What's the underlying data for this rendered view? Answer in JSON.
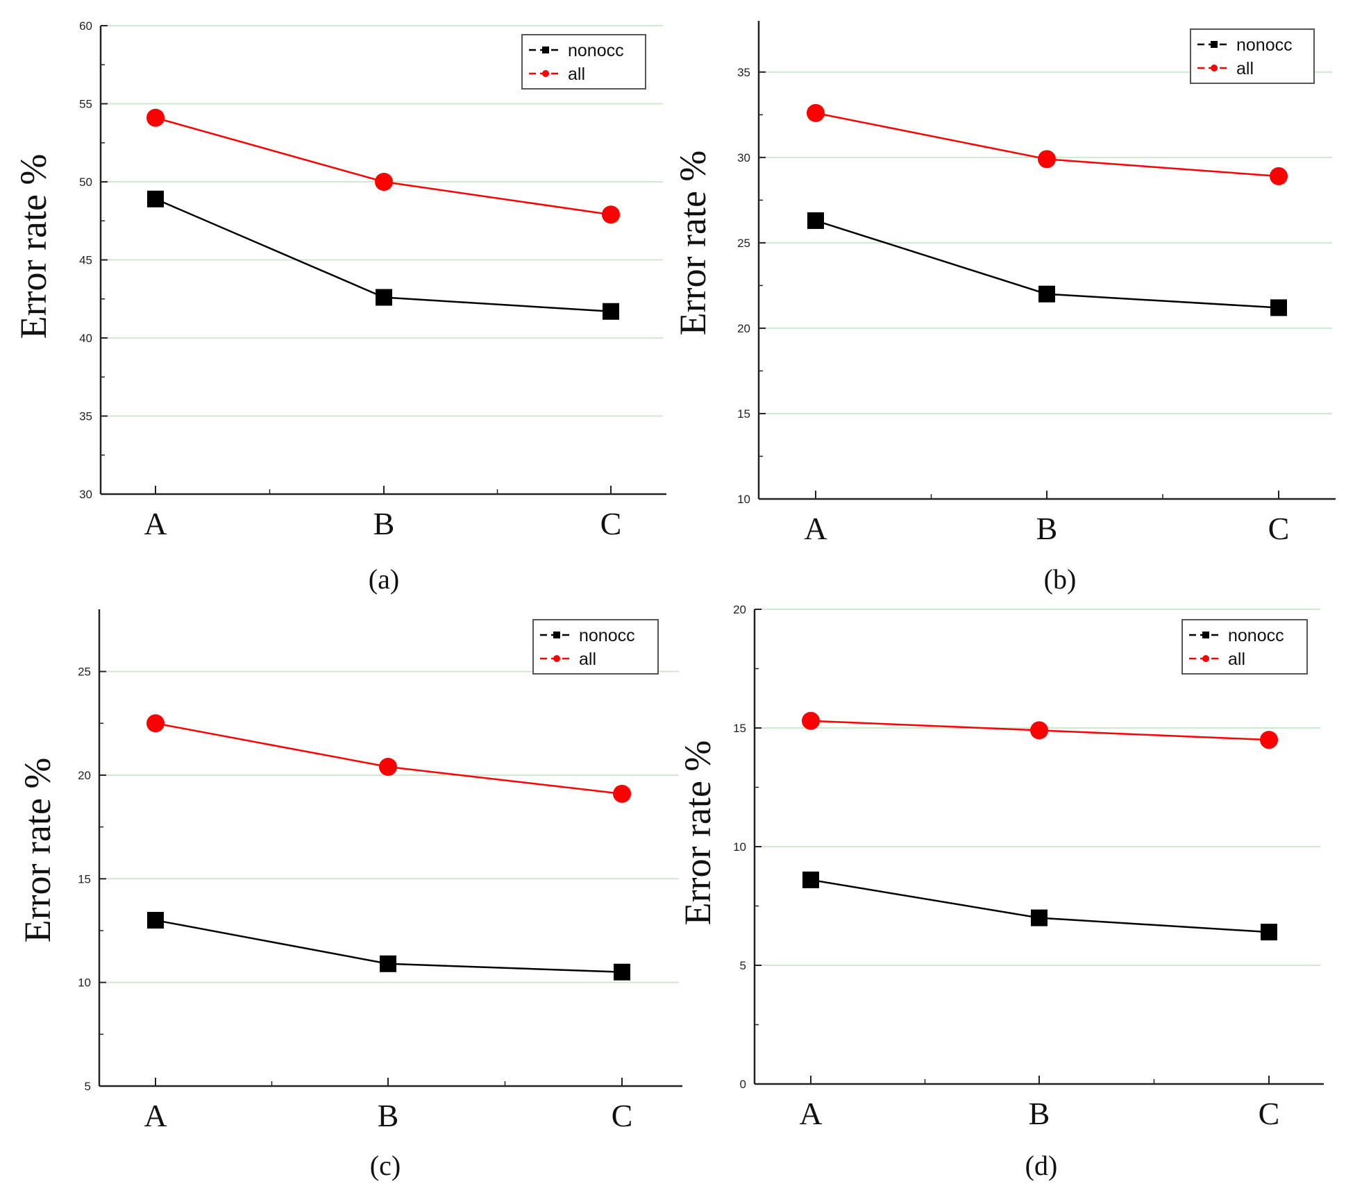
{
  "figure": {
    "colors": {
      "nonocc": "#000000",
      "all": "#ff0000",
      "grid": "#cfe9cf",
      "axis": "#222222"
    }
  },
  "chart_data": [
    {
      "type": "line",
      "caption": "(a)",
      "categories": [
        "A",
        "B",
        "C"
      ],
      "ylabel": "Error rate %",
      "ylim": [
        30,
        60
      ],
      "yticks": [
        "30",
        "35",
        "40",
        "45",
        "50",
        "55",
        "60"
      ],
      "series": [
        {
          "name": "nonocc",
          "marker": "square",
          "values": [
            48.9,
            42.6,
            41.7
          ]
        },
        {
          "name": "all",
          "marker": "circle",
          "values": [
            54.1,
            50.0,
            47.9
          ]
        }
      ]
    },
    {
      "type": "line",
      "caption": "(b)",
      "categories": [
        "A",
        "B",
        "C"
      ],
      "ylabel": "Error rate %",
      "ylim": [
        10,
        38
      ],
      "yticks": [
        "10",
        "15",
        "20",
        "25",
        "30",
        "35"
      ],
      "series": [
        {
          "name": "nonocc",
          "marker": "square",
          "values": [
            26.3,
            22.0,
            21.2
          ]
        },
        {
          "name": "all",
          "marker": "circle",
          "values": [
            32.6,
            29.9,
            28.9
          ]
        }
      ]
    },
    {
      "type": "line",
      "caption": "(c)",
      "categories": [
        "A",
        "B",
        "C"
      ],
      "ylabel": "Error rate %",
      "ylim": [
        5,
        28
      ],
      "yticks": [
        "5",
        "10",
        "15",
        "20",
        "25"
      ],
      "series": [
        {
          "name": "nonocc",
          "marker": "square",
          "values": [
            13.0,
            10.9,
            10.5
          ]
        },
        {
          "name": "all",
          "marker": "circle",
          "values": [
            22.5,
            20.4,
            19.1
          ]
        }
      ]
    },
    {
      "type": "line",
      "caption": "(d)",
      "categories": [
        "A",
        "B",
        "C"
      ],
      "ylabel": "Error rate %",
      "ylim": [
        0,
        20
      ],
      "yticks": [
        "0",
        "5",
        "10",
        "15",
        "20"
      ],
      "series": [
        {
          "name": "nonocc",
          "marker": "square",
          "values": [
            8.6,
            7.0,
            6.4
          ]
        },
        {
          "name": "all",
          "marker": "circle",
          "values": [
            15.3,
            14.9,
            14.5
          ]
        }
      ]
    }
  ]
}
